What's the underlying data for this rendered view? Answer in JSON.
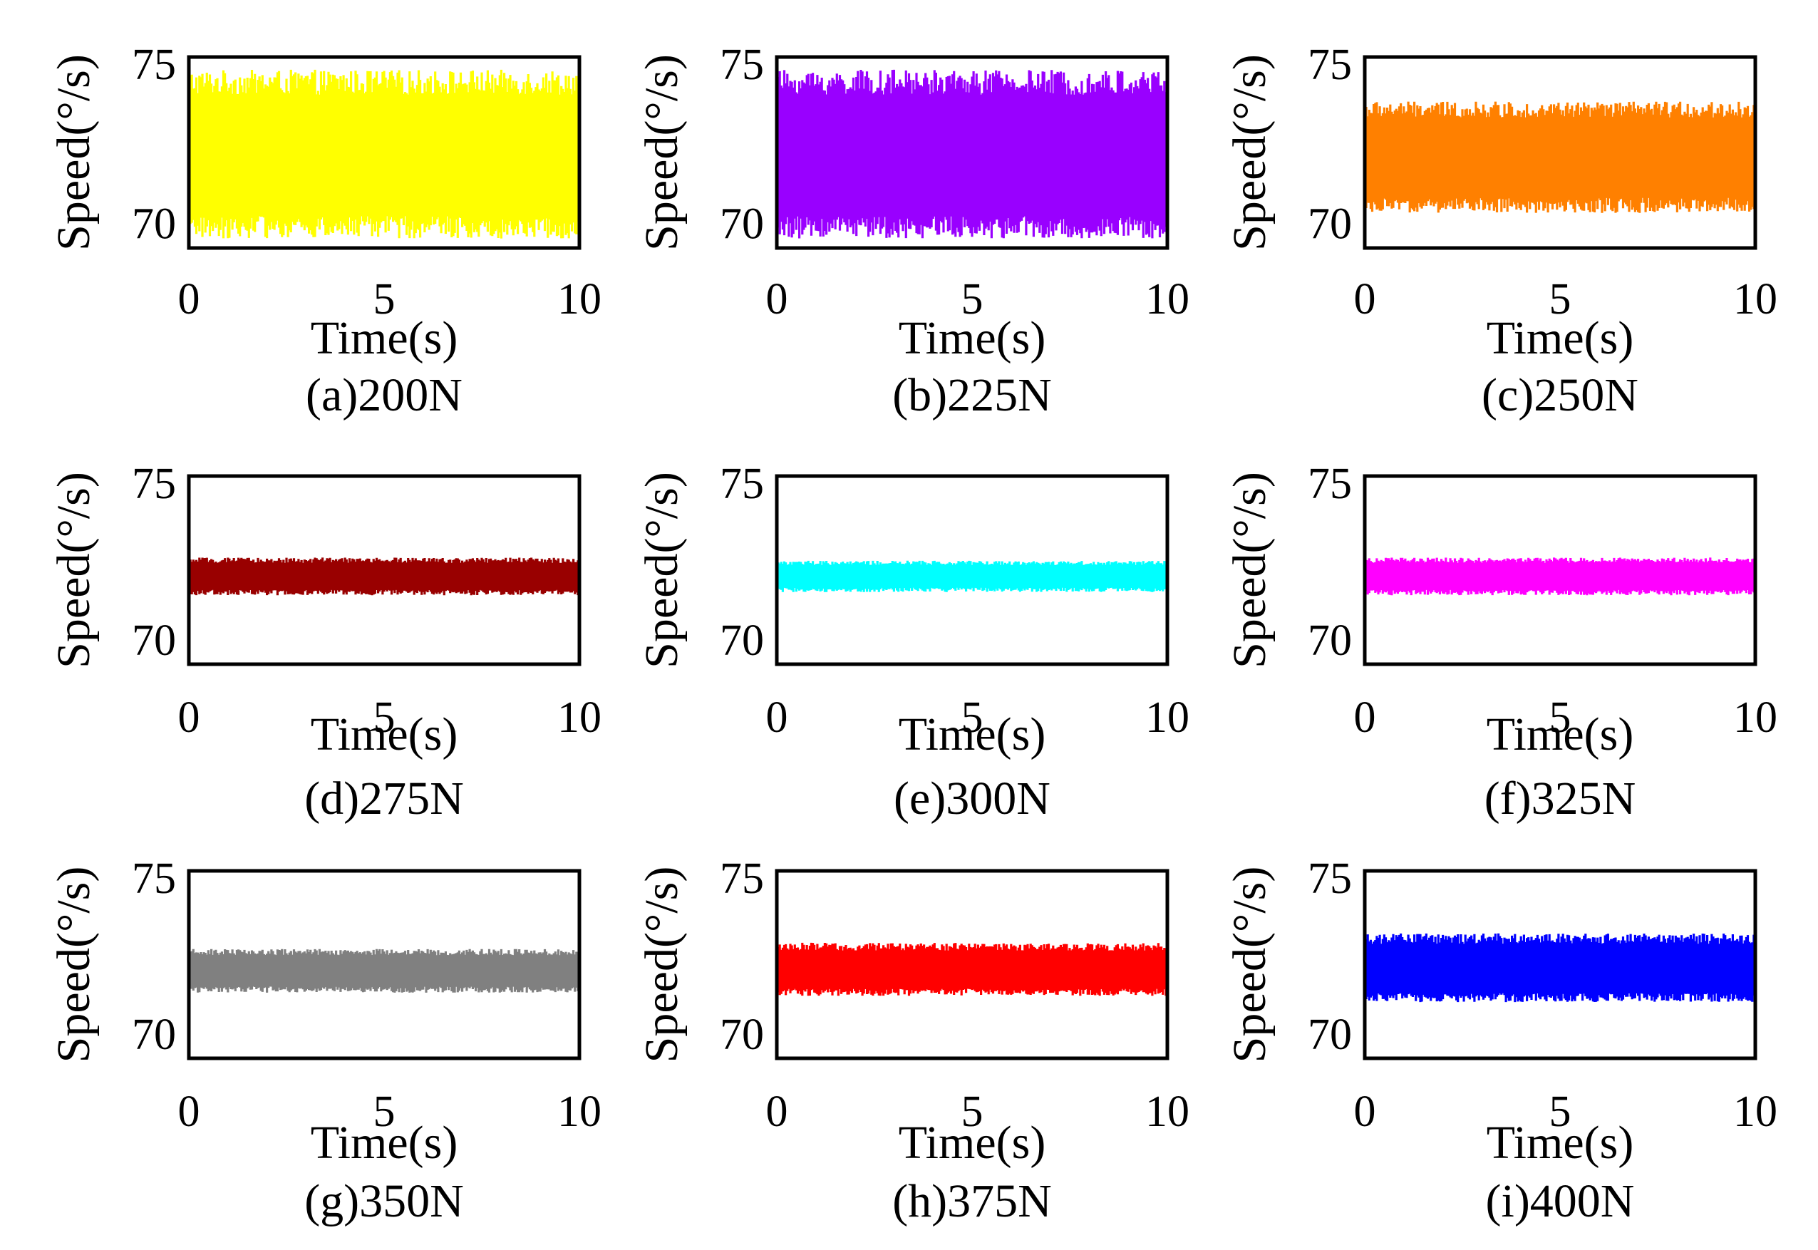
{
  "figure": {
    "background": "#ffffff",
    "frame_color": "#000000"
  },
  "chart_data": [
    {
      "type": "line",
      "caption": "(a)200N",
      "xlabel": "Time(s)",
      "ylabel": "Speed(°/s)",
      "xlim": [
        0,
        10
      ],
      "ylim": [
        69.2,
        75.2
      ],
      "xticks": [
        0,
        5,
        10
      ],
      "yticks": [
        70,
        75
      ],
      "color": "#ffff00",
      "mean": 72.0,
      "noise_min": 69.5,
      "noise_max": 74.8,
      "series": [
        {
          "name": "speed",
          "x_range": [
            0,
            10
          ],
          "y_range": [
            69.5,
            74.8
          ]
        }
      ]
    },
    {
      "type": "line",
      "caption": "(b)225N",
      "xlabel": "Time(s)",
      "ylabel": "Speed(°/s)",
      "xlim": [
        0,
        10
      ],
      "ylim": [
        69.2,
        75.2
      ],
      "xticks": [
        0,
        5,
        10
      ],
      "yticks": [
        70,
        75
      ],
      "color": "#9900ff",
      "mean": 72.0,
      "noise_min": 69.5,
      "noise_max": 74.8,
      "series": [
        {
          "name": "speed",
          "x_range": [
            0,
            10
          ],
          "y_range": [
            69.5,
            74.8
          ]
        }
      ]
    },
    {
      "type": "line",
      "caption": "(c)250N",
      "xlabel": "Time(s)",
      "ylabel": "Speed(°/s)",
      "xlim": [
        0,
        10
      ],
      "ylim": [
        69.2,
        75.2
      ],
      "xticks": [
        0,
        5,
        10
      ],
      "yticks": [
        70,
        75
      ],
      "color": "#ff8000",
      "mean": 72.0,
      "noise_min": 70.3,
      "noise_max": 73.8,
      "series": [
        {
          "name": "speed",
          "x_range": [
            0,
            10
          ],
          "y_range": [
            70.3,
            73.8
          ]
        }
      ]
    },
    {
      "type": "line",
      "caption": "(d)275N",
      "xlabel": "Time(s)",
      "ylabel": "Speed(°/s)",
      "xlim": [
        0,
        10
      ],
      "ylim": [
        69.2,
        75.2
      ],
      "xticks": [
        0,
        5,
        10
      ],
      "yticks": [
        70,
        75
      ],
      "color": "#990000",
      "mean": 72.0,
      "noise_min": 71.4,
      "noise_max": 72.6,
      "series": [
        {
          "name": "speed",
          "x_range": [
            0,
            10
          ],
          "y_range": [
            71.4,
            72.6
          ]
        }
      ]
    },
    {
      "type": "line",
      "caption": "(e)300N",
      "xlabel": "Time(s)",
      "ylabel": "Speed(°/s)",
      "xlim": [
        0,
        10
      ],
      "ylim": [
        69.2,
        75.2
      ],
      "xticks": [
        0,
        5,
        10
      ],
      "yticks": [
        70,
        75
      ],
      "color": "#00ffff",
      "mean": 72.0,
      "noise_min": 71.5,
      "noise_max": 72.5,
      "series": [
        {
          "name": "speed",
          "x_range": [
            0,
            10
          ],
          "y_range": [
            71.5,
            72.5
          ]
        }
      ]
    },
    {
      "type": "line",
      "caption": "(f)325N",
      "xlabel": "Time(s)",
      "ylabel": "Speed(°/s)",
      "xlim": [
        0,
        10
      ],
      "ylim": [
        69.2,
        75.2
      ],
      "xticks": [
        0,
        5,
        10
      ],
      "yticks": [
        70,
        75
      ],
      "color": "#ff00ff",
      "mean": 72.0,
      "noise_min": 71.4,
      "noise_max": 72.6,
      "series": [
        {
          "name": "speed",
          "x_range": [
            0,
            10
          ],
          "y_range": [
            71.4,
            72.6
          ]
        }
      ]
    },
    {
      "type": "line",
      "caption": "(g)350N",
      "xlabel": "Time(s)",
      "ylabel": "Speed(°/s)",
      "xlim": [
        0,
        10
      ],
      "ylim": [
        69.2,
        75.2
      ],
      "xticks": [
        0,
        5,
        10
      ],
      "yticks": [
        70,
        75
      ],
      "color": "#808080",
      "mean": 72.0,
      "noise_min": 71.3,
      "noise_max": 72.7,
      "series": [
        {
          "name": "speed",
          "x_range": [
            0,
            10
          ],
          "y_range": [
            71.3,
            72.7
          ]
        }
      ]
    },
    {
      "type": "line",
      "caption": "(h)375N",
      "xlabel": "Time(s)",
      "ylabel": "Speed(°/s)",
      "xlim": [
        0,
        10
      ],
      "ylim": [
        69.2,
        75.2
      ],
      "xticks": [
        0,
        5,
        10
      ],
      "yticks": [
        70,
        75
      ],
      "color": "#ff0000",
      "mean": 72.0,
      "noise_min": 71.2,
      "noise_max": 72.9,
      "series": [
        {
          "name": "speed",
          "x_range": [
            0,
            10
          ],
          "y_range": [
            71.2,
            72.9
          ]
        }
      ]
    },
    {
      "type": "line",
      "caption": "(i)400N",
      "xlabel": "Time(s)",
      "ylabel": "Speed(°/s)",
      "xlim": [
        0,
        10
      ],
      "ylim": [
        69.2,
        75.2
      ],
      "xticks": [
        0,
        5,
        10
      ],
      "yticks": [
        70,
        75
      ],
      "color": "#0000ff",
      "mean": 72.0,
      "noise_min": 71.0,
      "noise_max": 73.2,
      "series": [
        {
          "name": "speed",
          "x_range": [
            0,
            10
          ],
          "y_range": [
            71.0,
            73.2
          ]
        }
      ]
    }
  ]
}
